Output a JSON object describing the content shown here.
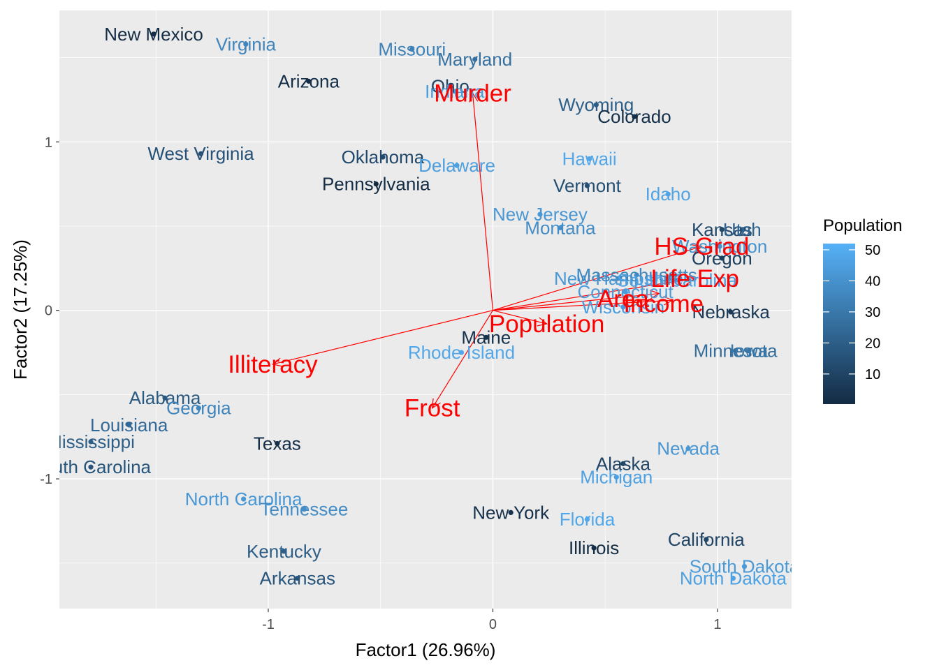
{
  "chart_data": {
    "type": "scatter",
    "subtype": "biplot",
    "xlabel": "Factor1 (26.96%)",
    "ylabel": "Factor2 (17.25%)",
    "xlim": [
      -1.93,
      1.33
    ],
    "ylim": [
      -1.77,
      1.78
    ],
    "x_ticks": [
      -1,
      0,
      1
    ],
    "y_ticks": [
      -1,
      0,
      1
    ],
    "grid": true,
    "background": "#ebebeb",
    "legend": {
      "title": "Population",
      "position": "right",
      "ticks": [
        10,
        20,
        30,
        40,
        50
      ],
      "range": [
        0.3,
        52
      ],
      "color_low": "#132b43",
      "color_high": "#56b1f7"
    },
    "points": [
      {
        "label": "New Mexico",
        "x": -1.51,
        "y": 1.64,
        "population": 1
      },
      {
        "label": "Virginia",
        "x": -1.1,
        "y": 1.58,
        "population": 35
      },
      {
        "label": "Missouri",
        "x": -0.36,
        "y": 1.55,
        "population": 34
      },
      {
        "label": "Maryland",
        "x": -0.08,
        "y": 1.49,
        "population": 27
      },
      {
        "label": "Arizona",
        "x": -0.82,
        "y": 1.36,
        "population": 2
      },
      {
        "label": "Ohio",
        "x": -0.19,
        "y": 1.33,
        "population": 10
      },
      {
        "label": "Indiana",
        "x": -0.17,
        "y": 1.3,
        "population": 44
      },
      {
        "label": "Wyoming",
        "x": 0.46,
        "y": 1.22,
        "population": 20
      },
      {
        "label": "Colorado",
        "x": 0.63,
        "y": 1.15,
        "population": 2
      },
      {
        "label": "West Virginia",
        "x": -1.3,
        "y": 0.93,
        "population": 15
      },
      {
        "label": "Oklahoma",
        "x": -0.49,
        "y": 0.91,
        "population": 12
      },
      {
        "label": "Delaware",
        "x": -0.16,
        "y": 0.86,
        "population": 45
      },
      {
        "label": "Hawaii",
        "x": 0.43,
        "y": 0.9,
        "population": 48
      },
      {
        "label": "Pennsylvania",
        "x": -0.52,
        "y": 0.75,
        "population": 1
      },
      {
        "label": "Vermont",
        "x": 0.42,
        "y": 0.74,
        "population": 14
      },
      {
        "label": "Idaho",
        "x": 0.78,
        "y": 0.69,
        "population": 47
      },
      {
        "label": "New Jersey",
        "x": 0.21,
        "y": 0.57,
        "population": 42
      },
      {
        "label": "Montana",
        "x": 0.3,
        "y": 0.49,
        "population": 38
      },
      {
        "label": "Kansas",
        "x": 1.02,
        "y": 0.48,
        "population": 12
      },
      {
        "label": "Utah",
        "x": 1.11,
        "y": 0.48,
        "population": 22
      },
      {
        "label": "Washington",
        "x": 1.01,
        "y": 0.38,
        "population": 40
      },
      {
        "label": "Oregon",
        "x": 1.02,
        "y": 0.31,
        "population": 8
      },
      {
        "label": "New Hampshire",
        "x": 0.56,
        "y": 0.19,
        "population": 42
      },
      {
        "label": "Massachusetts",
        "x": 0.64,
        "y": 0.21,
        "population": 36
      },
      {
        "label": "South Carolina",
        "x": 0.82,
        "y": 0.18,
        "population": 46
      },
      {
        "label": "Connecticut",
        "x": 0.59,
        "y": 0.11,
        "population": 44
      },
      {
        "label": "Wisconsin",
        "x": 0.58,
        "y": 0.02,
        "population": 44
      },
      {
        "label": "Nebraska",
        "x": 1.06,
        "y": -0.01,
        "population": 6
      },
      {
        "label": "Maine",
        "x": -0.03,
        "y": -0.16,
        "population": 3
      },
      {
        "label": "Rhode Island",
        "x": -0.14,
        "y": -0.25,
        "population": 48
      },
      {
        "label": "Minnesota",
        "x": 1.08,
        "y": -0.24,
        "population": 26
      },
      {
        "label": "Iowa",
        "x": 1.14,
        "y": -0.24,
        "population": 30
      },
      {
        "label": "Alabama",
        "x": -1.46,
        "y": -0.52,
        "population": 18
      },
      {
        "label": "Georgia",
        "x": -1.31,
        "y": -0.58,
        "population": 35
      },
      {
        "label": "Louisiana",
        "x": -1.62,
        "y": -0.68,
        "population": 24
      },
      {
        "label": "Mississippi",
        "x": -1.79,
        "y": -0.78,
        "population": 20
      },
      {
        "label": "South Carolina",
        "x": -1.79,
        "y": -0.93,
        "population": 16
      },
      {
        "label": "Texas",
        "x": -0.96,
        "y": -0.79,
        "population": 2
      },
      {
        "label": "Nevada",
        "x": 0.87,
        "y": -0.82,
        "population": 42
      },
      {
        "label": "Alaska",
        "x": 0.58,
        "y": -0.91,
        "population": 10
      },
      {
        "label": "Michigan",
        "x": 0.55,
        "y": -0.99,
        "population": 46
      },
      {
        "label": "North Carolina",
        "x": -1.11,
        "y": -1.12,
        "population": 42
      },
      {
        "label": "Tennessee",
        "x": -0.84,
        "y": -1.18,
        "population": 38
      },
      {
        "label": "New York",
        "x": 0.08,
        "y": -1.2,
        "population": 3
      },
      {
        "label": "Florida",
        "x": 0.42,
        "y": -1.24,
        "population": 48
      },
      {
        "label": "Kentucky",
        "x": -0.93,
        "y": -1.43,
        "population": 20
      },
      {
        "label": "Illinois",
        "x": 0.45,
        "y": -1.41,
        "population": 1
      },
      {
        "label": "California",
        "x": 0.95,
        "y": -1.36,
        "population": 10
      },
      {
        "label": "South Dakota",
        "x": 1.12,
        "y": -1.52,
        "population": 43
      },
      {
        "label": "North Dakota",
        "x": 1.07,
        "y": -1.59,
        "population": 46
      },
      {
        "label": "Arkansas",
        "x": -0.87,
        "y": -1.59,
        "population": 16
      }
    ],
    "arrows": [
      {
        "label": "Murder",
        "x": -0.09,
        "y": 1.29,
        "lx": -0.09,
        "ly": 1.29
      },
      {
        "label": "HS Grad",
        "x": 0.93,
        "y": 0.38,
        "lx": 0.93,
        "ly": 0.38
      },
      {
        "label": "Life Exp",
        "x": 0.9,
        "y": 0.19,
        "lx": 0.9,
        "ly": 0.19
      },
      {
        "label": "Area",
        "x": 0.74,
        "y": 0.1,
        "lx": 0.58,
        "ly": 0.07
      },
      {
        "label": "Income",
        "x": 0.8,
        "y": 0.06,
        "lx": 0.76,
        "ly": 0.04
      },
      {
        "label": "Population",
        "x": 0.24,
        "y": -0.08,
        "lx": 0.24,
        "ly": -0.08
      },
      {
        "label": "Illiteracy",
        "x": -0.98,
        "y": -0.32,
        "lx": -0.98,
        "ly": -0.32
      },
      {
        "label": "Frost",
        "x": -0.27,
        "y": -0.58,
        "lx": -0.27,
        "ly": -0.58
      }
    ]
  }
}
